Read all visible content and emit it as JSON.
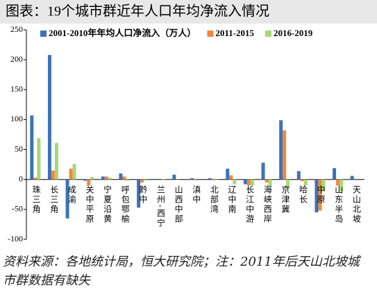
{
  "chart_data": {
    "type": "bar",
    "title": "图表：19个城市群近年人口年均净流入情况",
    "categories": [
      "珠三角",
      "长三角",
      "成渝",
      "关中平原",
      "宁夏沿黄",
      "呼包鄂榆",
      "黔中",
      "兰州-西宁",
      "山西中部",
      "滇中",
      "北部湾",
      "辽中南",
      "长江中游",
      "海峡西岸",
      "京津冀",
      "哈长",
      "中原",
      "山东半岛",
      "天山北坡"
    ],
    "series": [
      {
        "name": "2001-2010年年均人口净流入（万人）",
        "color": "#3d72b8",
        "values": [
          107,
          208,
          -65,
          -2,
          5,
          10,
          -47,
          1,
          8,
          2,
          2,
          18,
          -8,
          28,
          99,
          14,
          -55,
          19,
          6
        ]
      },
      {
        "name": "2011-2015",
        "color": "#f0883e",
        "values": [
          3,
          15,
          18,
          -10,
          5,
          5,
          -5,
          0,
          -1,
          1,
          1,
          7,
          -10,
          -5,
          82,
          -3,
          -52,
          -10,
          null
        ]
      },
      {
        "name": "2016-2019",
        "color": "#a4d977",
        "values": [
          69,
          61,
          26,
          4,
          3,
          -2,
          -2,
          -1,
          0,
          0,
          -1,
          -8,
          -10,
          -12,
          -15,
          -10,
          -20,
          -20,
          null
        ]
      }
    ],
    "ylim": [
      -100,
      250
    ],
    "yticks": [
      -100,
      -50,
      0,
      50,
      100,
      150,
      200,
      250
    ],
    "note": "资料来源：各地统计局，恒大研究院；注：2011年后天山北坡城市群数据有缺失"
  }
}
